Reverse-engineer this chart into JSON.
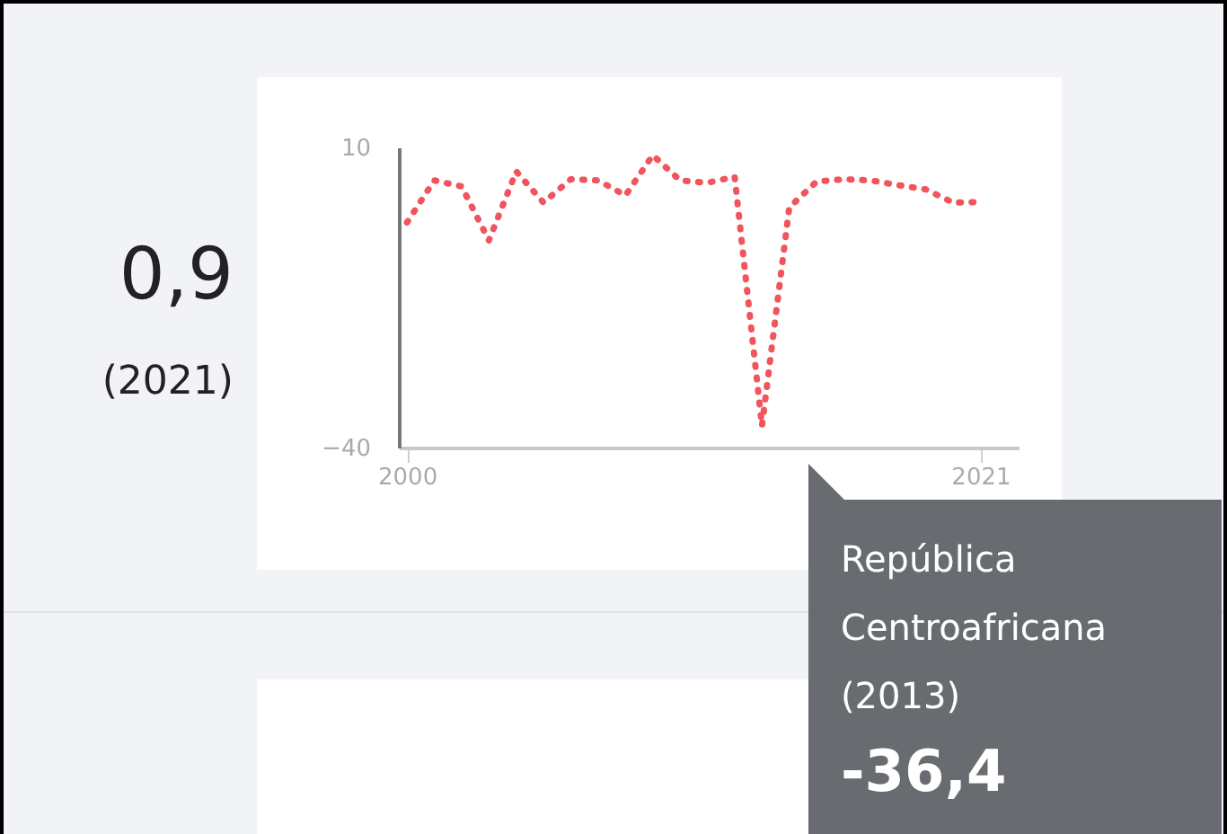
{
  "chart_data": {
    "type": "line",
    "x": [
      2000,
      2001,
      2002,
      2003,
      2004,
      2005,
      2006,
      2007,
      2008,
      2009,
      2010,
      2011,
      2012,
      2013,
      2014,
      2015,
      2016,
      2017,
      2018,
      2019,
      2020,
      2021
    ],
    "series": [
      {
        "color": "#f0545c",
        "values": [
          -2.5,
          4.5,
          3.5,
          -5.5,
          6.0,
          0.8,
          4.7,
          4.5,
          2.0,
          8.7,
          4.5,
          4.1,
          5.1,
          -36.4,
          0.0,
          4.3,
          4.7,
          4.5,
          3.7,
          3.0,
          0.8,
          0.9
        ]
      }
    ],
    "xlim": [
      1999.7,
      2022.4
    ],
    "xticks": [
      2000,
      2021
    ],
    "ylim": [
      -40,
      10
    ],
    "yticks": [
      -40,
      10
    ],
    "line_style": "dotted",
    "grid": false,
    "annotations": [
      "0,9",
      "(2021)",
      "República Centroafricana",
      "(2013)",
      "-36,4"
    ]
  }
}
